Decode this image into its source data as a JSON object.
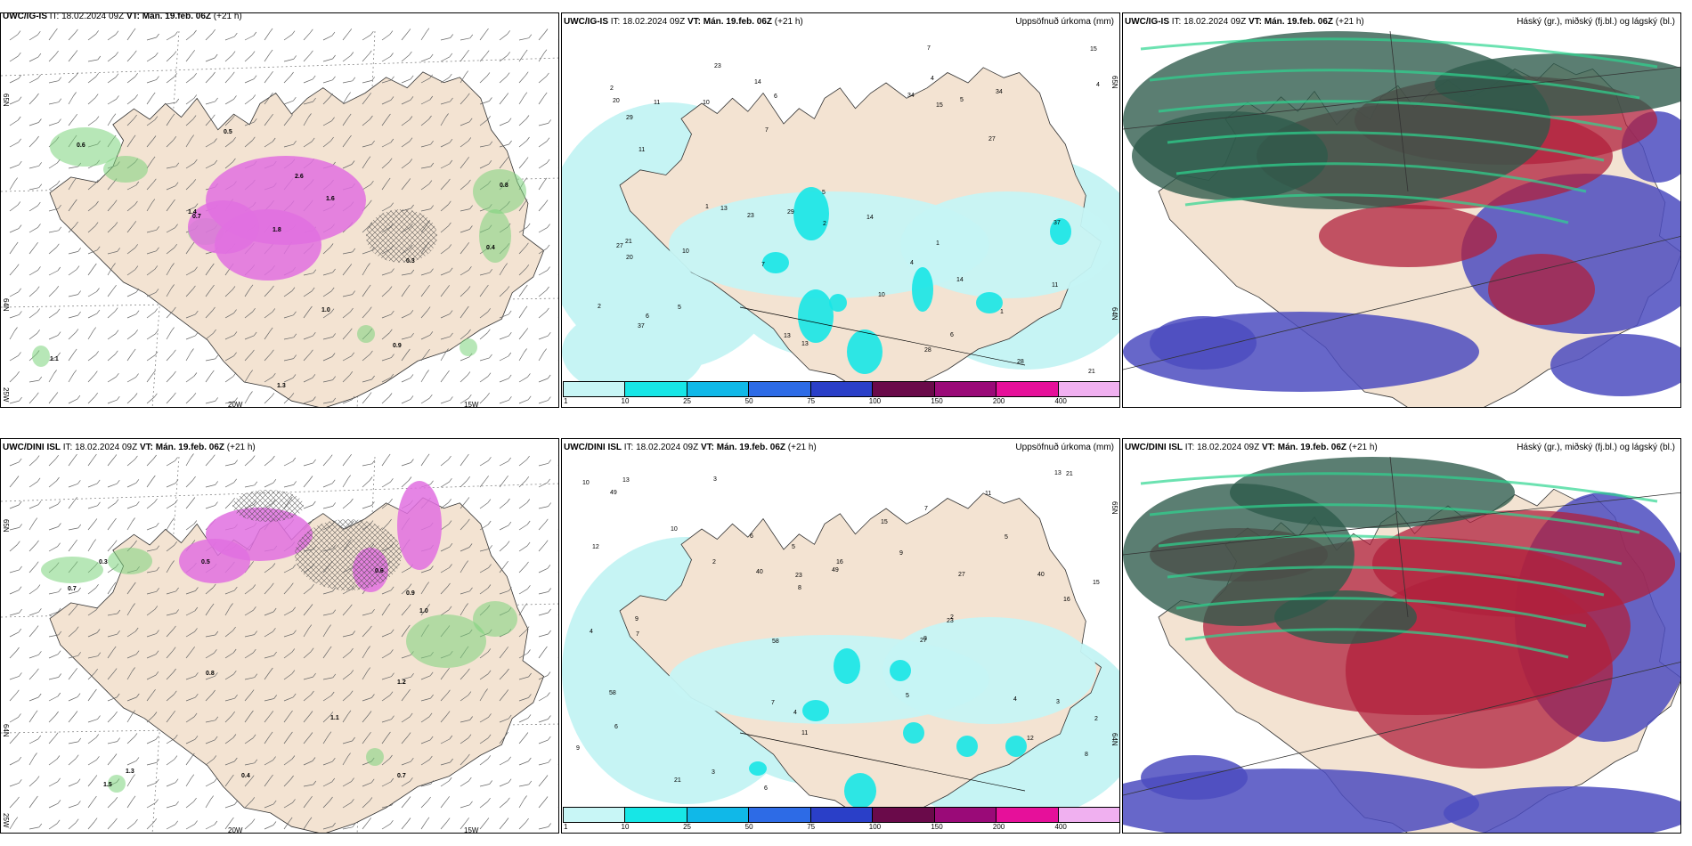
{
  "panels": [
    {
      "model": "UWC/IG-IS",
      "init": "IT: 18.02.2024 09Z",
      "valid": "VT: Mán. 19.feb. 06Z",
      "lead": "(+21 h)",
      "title_right": "",
      "type": "precip_phase_wind",
      "axis_labels": [
        "65N",
        "64N",
        "20W",
        "15W",
        "25W"
      ]
    },
    {
      "model": "UWC/IG-IS",
      "init": "IT: 18.02.2024 09Z",
      "valid": "VT: Mán. 19.feb. 06Z",
      "lead": "(+21 h)",
      "title_right": "Uppsöfnuð úrkoma (mm)",
      "type": "accumulated_precip",
      "axis_labels": [
        "65N",
        "64N"
      ]
    },
    {
      "model": "UWC/IG-IS",
      "init": "IT: 18.02.2024 09Z",
      "valid": "VT: Mán. 19.feb. 06Z",
      "lead": "(+21 h)",
      "title_right": "Háský (gr.), miðský (fj.bl.) og lágský (bl.)",
      "type": "clouds"
    },
    {
      "model": "UWC/DINI ISL",
      "init": "IT: 18.02.2024 09Z",
      "valid": "VT: Mán. 19.feb. 06Z",
      "lead": "(+21 h)",
      "title_right": "",
      "type": "precip_phase_wind",
      "axis_labels": [
        "65N",
        "64N",
        "20W",
        "15W",
        "25W"
      ]
    },
    {
      "model": "UWC/DINI ISL",
      "init": "IT: 18.02.2024 09Z",
      "valid": "VT: Mán. 19.feb. 06Z",
      "lead": "(+21 h)",
      "title_right": "Uppsöfnuð úrkoma (mm)",
      "type": "accumulated_precip",
      "axis_labels": [
        "65N",
        "64N"
      ]
    },
    {
      "model": "UWC/DINI ISL",
      "init": "IT: 18.02.2024 09Z",
      "valid": "VT: Mán. 19.feb. 06Z",
      "lead": "(+21 h)",
      "title_right": "Háský (gr.), miðský (fj.bl.) og lágský (bl.)",
      "type": "clouds"
    }
  ],
  "precip_legend": {
    "labels": [
      "1",
      "10",
      "25",
      "50",
      "75",
      "100",
      "150",
      "200",
      "400"
    ],
    "colors": [
      "#c8f6f6",
      "#17e6e6",
      "#10b8e8",
      "#2d6be6",
      "#2a3fc8",
      "#6a0a4a",
      "#9a0a78",
      "#e6109a",
      "#f0b0f0"
    ]
  },
  "precip_values_top": [
    "1",
    "2",
    "4",
    "5",
    "6",
    "7",
    "10",
    "11",
    "13",
    "14",
    "15",
    "20",
    "21",
    "23",
    "27",
    "28",
    "29",
    "34",
    "37"
  ],
  "precip_values_bottom": [
    "2",
    "3",
    "4",
    "5",
    "6",
    "7",
    "8",
    "9",
    "10",
    "11",
    "12",
    "13",
    "15",
    "16",
    "21",
    "23",
    "27",
    "40",
    "49",
    "58"
  ],
  "phase_values_top": [
    "0.5",
    "0.6",
    "0.7",
    "0.8",
    "0.9",
    "1.0",
    "1.1",
    "1.3",
    "1.4",
    "1.6",
    "1.8",
    "2.6",
    "0.3",
    "0.4"
  ],
  "phase_values_bottom": [
    "0.3",
    "0.5",
    "0.6",
    "0.7",
    "0.8",
    "0.9",
    "1.0",
    "1.1",
    "1.2",
    "1.3",
    "1.5",
    "0.4",
    "0.7"
  ],
  "colors": {
    "land": "#f3e3d2",
    "precip_light": "#c6f4f4",
    "precip_cyan": "#17e6e6",
    "snow": "#e070e0",
    "rain_green": "#7cd47c",
    "high_cloud": "#2d5a4a",
    "mid_cloud": "#b0203c",
    "low_cloud": "#4c4cc0"
  }
}
